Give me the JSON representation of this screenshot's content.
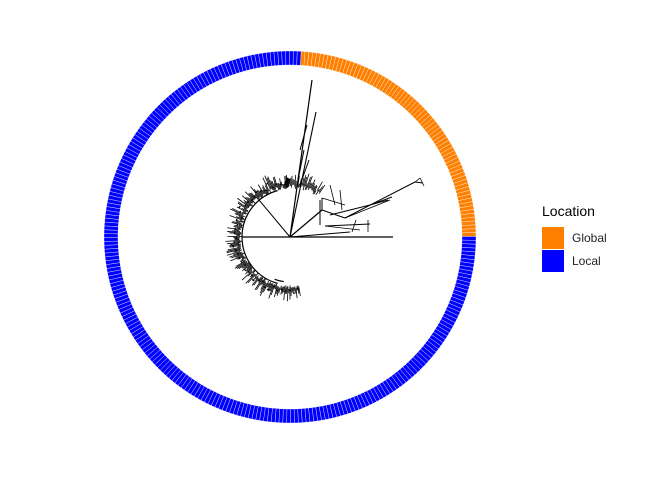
{
  "legend": {
    "title": "Location",
    "items": [
      {
        "label": "Global",
        "color": "#FF7F00"
      },
      {
        "label": "Local",
        "color": "#0000FF"
      }
    ]
  },
  "ring": {
    "global_fraction": 0.24,
    "global_color": "#FF7F00",
    "local_color": "#0000FF"
  },
  "tree": {
    "branch_color": "#000000"
  }
}
